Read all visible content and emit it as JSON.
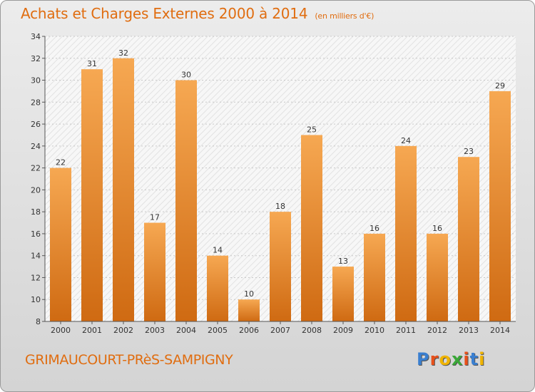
{
  "title": "Achats et Charges Externes 2000 à 2014",
  "title_unit": "(en milliers d'€)",
  "town": "GRIMAUCOURT-PRèS-SAMPIGNY",
  "brand": {
    "letters": [
      "P",
      "r",
      "o",
      "x",
      "i",
      "t",
      "i"
    ],
    "colors": [
      "#3a7fd0",
      "#e8501a",
      "#f0b400",
      "#3aa838",
      "#e8501a",
      "#3a7fd0",
      "#f0b400"
    ]
  },
  "colors": {
    "accent": "#e06d10",
    "bar_top": "#f6a852",
    "bar_bottom": "#cf6a12"
  },
  "chart_data": {
    "type": "bar",
    "categories": [
      "2000",
      "2001",
      "2002",
      "2003",
      "2004",
      "2005",
      "2006",
      "2007",
      "2008",
      "2009",
      "2010",
      "2011",
      "2012",
      "2013",
      "2014"
    ],
    "values": [
      22,
      31,
      32,
      17,
      30,
      14,
      10,
      18,
      25,
      13,
      16,
      24,
      16,
      23,
      29
    ],
    "ylim": [
      8,
      34
    ],
    "yticks": [
      8,
      10,
      12,
      14,
      16,
      18,
      20,
      22,
      24,
      26,
      28,
      30,
      32,
      34
    ],
    "grid": true
  }
}
